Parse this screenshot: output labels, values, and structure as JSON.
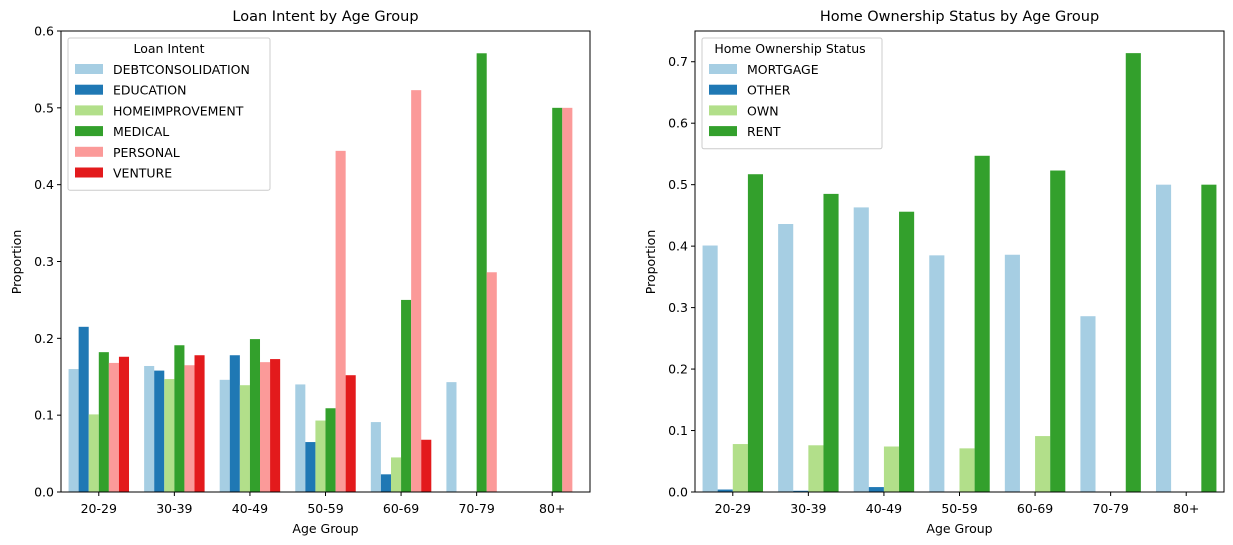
{
  "chart_data": [
    {
      "type": "bar",
      "title": "Loan Intent by Age Group",
      "xlabel": "Age Group",
      "ylabel": "Proportion",
      "ylim": [
        0,
        0.6
      ],
      "yticks": [
        "0.0",
        "0.1",
        "0.2",
        "0.3",
        "0.4",
        "0.5",
        "0.6"
      ],
      "grid": false,
      "legend": {
        "title": "Loan Intent",
        "placement": "upper-left"
      },
      "categories": [
        "20-29",
        "30-39",
        "40-49",
        "50-59",
        "60-69",
        "70-79",
        "80+"
      ],
      "series": [
        {
          "name": "DEBTCONSOLIDATION",
          "color": "#a6cee3",
          "values": [
            0.16,
            0.164,
            0.146,
            0.14,
            0.091,
            0.143,
            0
          ]
        },
        {
          "name": "EDUCATION",
          "color": "#1f78b4",
          "values": [
            0.215,
            0.158,
            0.178,
            0.065,
            0.023,
            0,
            0
          ]
        },
        {
          "name": "HOMEIMPROVEMENT",
          "color": "#b2df8a",
          "values": [
            0.101,
            0.147,
            0.139,
            0.093,
            0.045,
            0,
            0
          ]
        },
        {
          "name": "MEDICAL",
          "color": "#33a02c",
          "values": [
            0.182,
            0.191,
            0.199,
            0.109,
            0.25,
            0.571,
            0.5
          ]
        },
        {
          "name": "PERSONAL",
          "color": "#fb9a99",
          "values": [
            0.168,
            0.165,
            0.169,
            0.444,
            0.523,
            0.286,
            0.5
          ]
        },
        {
          "name": "VENTURE",
          "color": "#e31a1c",
          "values": [
            0.176,
            0.178,
            0.173,
            0.152,
            0.068,
            0,
            0
          ]
        }
      ]
    },
    {
      "type": "bar",
      "title": "Home Ownership Status by Age Group",
      "xlabel": "Age Group",
      "ylabel": "Proportion",
      "ylim": [
        0,
        0.75
      ],
      "yticks": [
        "0.0",
        "0.1",
        "0.2",
        "0.3",
        "0.4",
        "0.5",
        "0.6",
        "0.7"
      ],
      "grid": false,
      "legend": {
        "title": "Home Ownership Status",
        "placement": "upper-left"
      },
      "categories": [
        "20-29",
        "30-39",
        "40-49",
        "50-59",
        "60-69",
        "70-79",
        "80+"
      ],
      "series": [
        {
          "name": "MORTGAGE",
          "color": "#a6cee3",
          "values": [
            0.401,
            0.436,
            0.463,
            0.385,
            0.386,
            0.286,
            0.5
          ]
        },
        {
          "name": "OTHER",
          "color": "#1f78b4",
          "values": [
            0.004,
            0.002,
            0.008,
            0,
            0,
            0,
            0
          ]
        },
        {
          "name": "OWN",
          "color": "#b2df8a",
          "values": [
            0.078,
            0.076,
            0.074,
            0.071,
            0.091,
            0,
            0
          ]
        },
        {
          "name": "RENT",
          "color": "#33a02c",
          "values": [
            0.517,
            0.485,
            0.456,
            0.547,
            0.523,
            0.714,
            0.5
          ]
        }
      ]
    }
  ]
}
